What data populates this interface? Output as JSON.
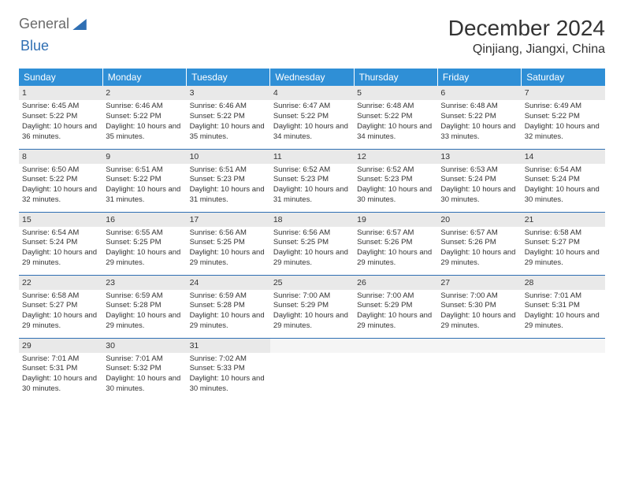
{
  "brand": {
    "a": "General",
    "b": "Blue"
  },
  "title": "December 2024",
  "location": "Qinjiang, Jiangxi, China",
  "weekdays": [
    "Sunday",
    "Monday",
    "Tuesday",
    "Wednesday",
    "Thursday",
    "Friday",
    "Saturday"
  ],
  "colors": {
    "header_bg": "#2f8fd6",
    "rule": "#2f6fb3",
    "daynum_bg": "#e9e9e9"
  },
  "days": [
    {
      "n": 1,
      "sr": "6:45 AM",
      "ss": "5:22 PM",
      "dl": "10 hours and 36 minutes."
    },
    {
      "n": 2,
      "sr": "6:46 AM",
      "ss": "5:22 PM",
      "dl": "10 hours and 35 minutes."
    },
    {
      "n": 3,
      "sr": "6:46 AM",
      "ss": "5:22 PM",
      "dl": "10 hours and 35 minutes."
    },
    {
      "n": 4,
      "sr": "6:47 AM",
      "ss": "5:22 PM",
      "dl": "10 hours and 34 minutes."
    },
    {
      "n": 5,
      "sr": "6:48 AM",
      "ss": "5:22 PM",
      "dl": "10 hours and 34 minutes."
    },
    {
      "n": 6,
      "sr": "6:48 AM",
      "ss": "5:22 PM",
      "dl": "10 hours and 33 minutes."
    },
    {
      "n": 7,
      "sr": "6:49 AM",
      "ss": "5:22 PM",
      "dl": "10 hours and 32 minutes."
    },
    {
      "n": 8,
      "sr": "6:50 AM",
      "ss": "5:22 PM",
      "dl": "10 hours and 32 minutes."
    },
    {
      "n": 9,
      "sr": "6:51 AM",
      "ss": "5:22 PM",
      "dl": "10 hours and 31 minutes."
    },
    {
      "n": 10,
      "sr": "6:51 AM",
      "ss": "5:23 PM",
      "dl": "10 hours and 31 minutes."
    },
    {
      "n": 11,
      "sr": "6:52 AM",
      "ss": "5:23 PM",
      "dl": "10 hours and 31 minutes."
    },
    {
      "n": 12,
      "sr": "6:52 AM",
      "ss": "5:23 PM",
      "dl": "10 hours and 30 minutes."
    },
    {
      "n": 13,
      "sr": "6:53 AM",
      "ss": "5:24 PM",
      "dl": "10 hours and 30 minutes."
    },
    {
      "n": 14,
      "sr": "6:54 AM",
      "ss": "5:24 PM",
      "dl": "10 hours and 30 minutes."
    },
    {
      "n": 15,
      "sr": "6:54 AM",
      "ss": "5:24 PM",
      "dl": "10 hours and 29 minutes."
    },
    {
      "n": 16,
      "sr": "6:55 AM",
      "ss": "5:25 PM",
      "dl": "10 hours and 29 minutes."
    },
    {
      "n": 17,
      "sr": "6:56 AM",
      "ss": "5:25 PM",
      "dl": "10 hours and 29 minutes."
    },
    {
      "n": 18,
      "sr": "6:56 AM",
      "ss": "5:25 PM",
      "dl": "10 hours and 29 minutes."
    },
    {
      "n": 19,
      "sr": "6:57 AM",
      "ss": "5:26 PM",
      "dl": "10 hours and 29 minutes."
    },
    {
      "n": 20,
      "sr": "6:57 AM",
      "ss": "5:26 PM",
      "dl": "10 hours and 29 minutes."
    },
    {
      "n": 21,
      "sr": "6:58 AM",
      "ss": "5:27 PM",
      "dl": "10 hours and 29 minutes."
    },
    {
      "n": 22,
      "sr": "6:58 AM",
      "ss": "5:27 PM",
      "dl": "10 hours and 29 minutes."
    },
    {
      "n": 23,
      "sr": "6:59 AM",
      "ss": "5:28 PM",
      "dl": "10 hours and 29 minutes."
    },
    {
      "n": 24,
      "sr": "6:59 AM",
      "ss": "5:28 PM",
      "dl": "10 hours and 29 minutes."
    },
    {
      "n": 25,
      "sr": "7:00 AM",
      "ss": "5:29 PM",
      "dl": "10 hours and 29 minutes."
    },
    {
      "n": 26,
      "sr": "7:00 AM",
      "ss": "5:29 PM",
      "dl": "10 hours and 29 minutes."
    },
    {
      "n": 27,
      "sr": "7:00 AM",
      "ss": "5:30 PM",
      "dl": "10 hours and 29 minutes."
    },
    {
      "n": 28,
      "sr": "7:01 AM",
      "ss": "5:31 PM",
      "dl": "10 hours and 29 minutes."
    },
    {
      "n": 29,
      "sr": "7:01 AM",
      "ss": "5:31 PM",
      "dl": "10 hours and 30 minutes."
    },
    {
      "n": 30,
      "sr": "7:01 AM",
      "ss": "5:32 PM",
      "dl": "10 hours and 30 minutes."
    },
    {
      "n": 31,
      "sr": "7:02 AM",
      "ss": "5:33 PM",
      "dl": "10 hours and 30 minutes."
    }
  ],
  "labels": {
    "sunrise": "Sunrise:",
    "sunset": "Sunset:",
    "daylight": "Daylight:"
  }
}
